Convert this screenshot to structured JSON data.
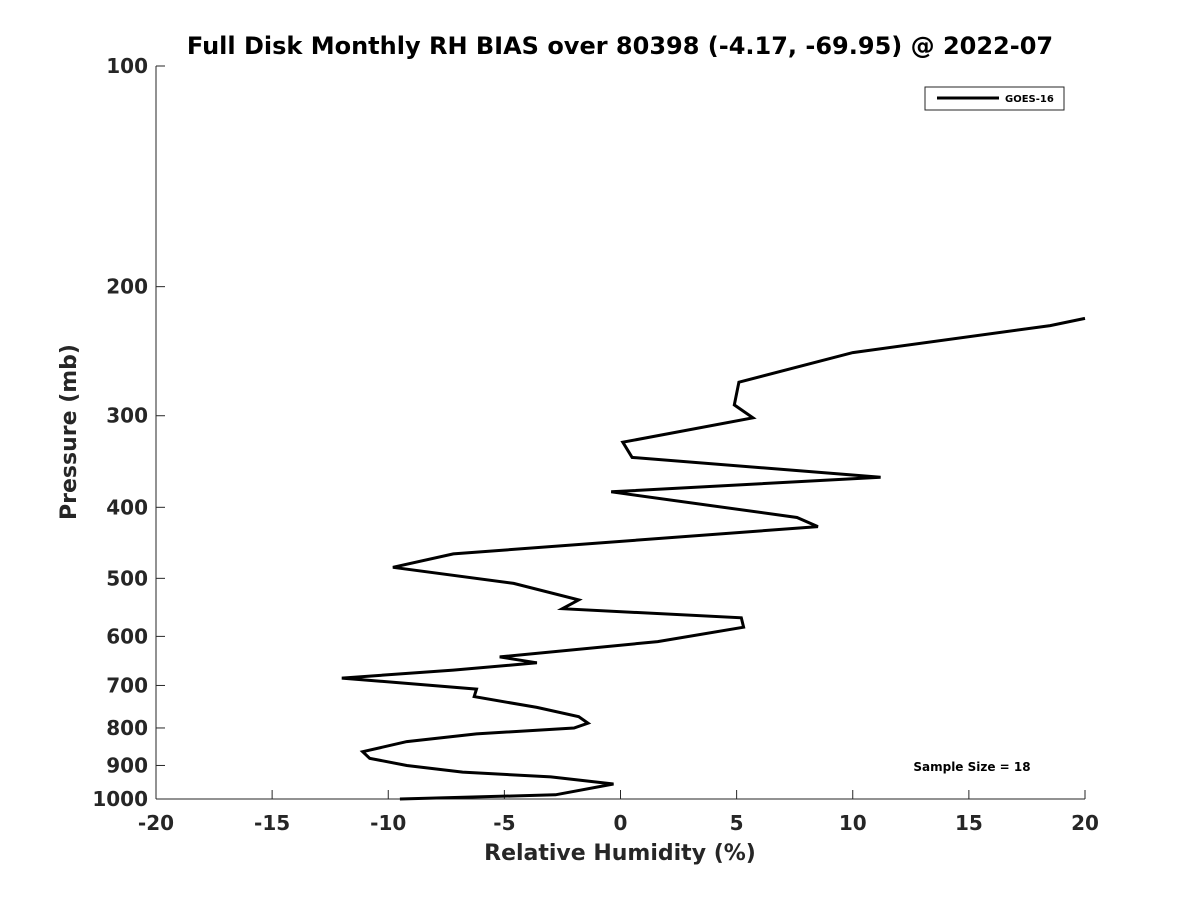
{
  "chart_data": {
    "type": "line",
    "title": "Full Disk Monthly RH BIAS over 80398 (-4.17, -69.95) @ 2022-07",
    "xlabel": "Relative Humidity (%)",
    "ylabel": "Pressure (mb)",
    "xlim": [
      -20,
      20
    ],
    "ylim": [
      100,
      1000
    ],
    "yscale": "log",
    "y_reversed": true,
    "grid": false,
    "legend_position": "top-right",
    "x_ticks": [
      "-20",
      "-15",
      "-10",
      "-5",
      "0",
      "5",
      "10",
      "15",
      "20"
    ],
    "y_ticks": [
      "100",
      "200",
      "300",
      "400",
      "500",
      "600",
      "700",
      "800",
      "900",
      "1000"
    ],
    "series": [
      {
        "name": "GOES-16",
        "color": "#000000",
        "points": [
          {
            "x": -9.5,
            "y": 1000
          },
          {
            "x": -2.8,
            "y": 987
          },
          {
            "x": -0.3,
            "y": 954
          },
          {
            "x": -3.0,
            "y": 933
          },
          {
            "x": -6.8,
            "y": 919
          },
          {
            "x": -9.2,
            "y": 900
          },
          {
            "x": -10.8,
            "y": 880
          },
          {
            "x": -11.1,
            "y": 862
          },
          {
            "x": -9.2,
            "y": 835
          },
          {
            "x": -6.2,
            "y": 815
          },
          {
            "x": -2.0,
            "y": 800
          },
          {
            "x": -1.4,
            "y": 788
          },
          {
            "x": -1.8,
            "y": 772
          },
          {
            "x": -3.6,
            "y": 750
          },
          {
            "x": -6.3,
            "y": 725
          },
          {
            "x": -6.2,
            "y": 708
          },
          {
            "x": -12.0,
            "y": 684
          },
          {
            "x": -7.2,
            "y": 667
          },
          {
            "x": -3.6,
            "y": 652
          },
          {
            "x": -5.2,
            "y": 640
          },
          {
            "x": 1.6,
            "y": 610
          },
          {
            "x": 5.3,
            "y": 583
          },
          {
            "x": 5.2,
            "y": 566
          },
          {
            "x": -2.5,
            "y": 550
          },
          {
            "x": -1.8,
            "y": 535
          },
          {
            "x": -4.6,
            "y": 508
          },
          {
            "x": -9.8,
            "y": 483
          },
          {
            "x": -7.2,
            "y": 463
          },
          {
            "x": 8.5,
            "y": 425
          },
          {
            "x": 7.6,
            "y": 413
          },
          {
            "x": -0.4,
            "y": 381
          },
          {
            "x": 11.2,
            "y": 364
          },
          {
            "x": 0.5,
            "y": 342
          },
          {
            "x": 0.1,
            "y": 326
          },
          {
            "x": 5.7,
            "y": 302
          },
          {
            "x": 4.9,
            "y": 290
          },
          {
            "x": 5.1,
            "y": 270
          },
          {
            "x": 10.0,
            "y": 246
          },
          {
            "x": 18.5,
            "y": 226
          },
          {
            "x": 20.0,
            "y": 221
          }
        ]
      }
    ],
    "annotations": [
      {
        "text": "Sample Size = 18"
      }
    ]
  }
}
